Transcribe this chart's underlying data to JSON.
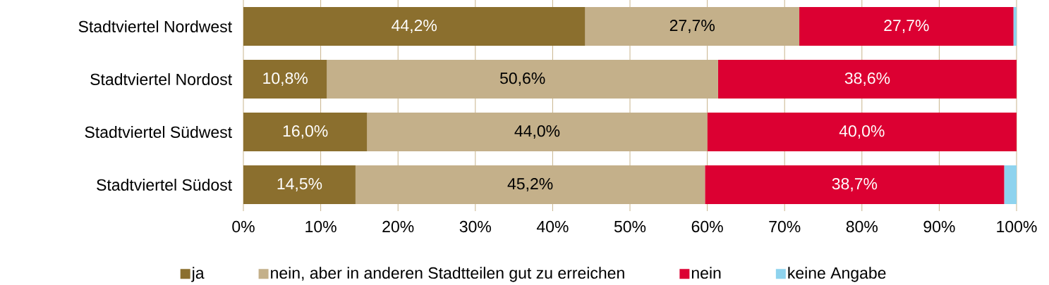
{
  "chart_data": {
    "type": "bar",
    "orientation": "horizontal",
    "stacked": true,
    "categories": [
      "Stadtviertel Nordwest",
      "Stadtviertel Nordost",
      "Stadtviertel Südwest",
      "Stadtviertel Südost"
    ],
    "series": [
      {
        "name": "ja",
        "color": "#8b6f2e",
        "values": [
          44.2,
          10.8,
          16.0,
          14.5
        ],
        "value_labels": [
          "44,2%",
          "10,8%",
          "16,0%",
          "14,5%"
        ]
      },
      {
        "name": "nein, aber in anderen Stadtteilen gut zu erreichen",
        "color": "#c4b08a",
        "values": [
          27.7,
          50.6,
          44.0,
          45.2
        ],
        "value_labels": [
          "27,7%",
          "50,6%",
          "44,0%",
          "45,2%"
        ]
      },
      {
        "name": "nein",
        "color": "#dc0032",
        "values": [
          27.7,
          38.6,
          40.0,
          38.7
        ],
        "value_labels": [
          "27,7%",
          "38,6%",
          "40,0%",
          "38,7%"
        ]
      },
      {
        "name": "keine Angabe",
        "color": "#8ed3ee",
        "values": [
          0.4,
          0,
          0,
          1.6
        ]
      }
    ],
    "xlim": [
      0,
      100
    ],
    "xticks": [
      {
        "value": 0,
        "label": "0%"
      },
      {
        "value": 10,
        "label": "10%"
      },
      {
        "value": 20,
        "label": "20%"
      },
      {
        "value": 30,
        "label": "30%"
      },
      {
        "value": 40,
        "label": "40%"
      },
      {
        "value": 50,
        "label": "50%"
      },
      {
        "value": 60,
        "label": "60%"
      },
      {
        "value": 70,
        "label": "70%"
      },
      {
        "value": 80,
        "label": "80%"
      },
      {
        "value": 90,
        "label": "90%"
      },
      {
        "value": 100,
        "label": "100%"
      }
    ],
    "grid": "x",
    "legend": "bottom"
  }
}
